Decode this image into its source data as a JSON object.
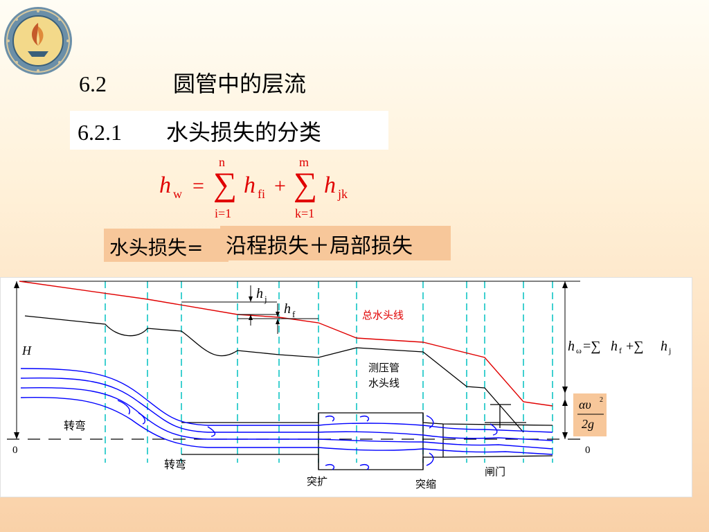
{
  "headings": {
    "section_number": "6.2",
    "section_title": "圆管中的层流",
    "subsection_number": "6.2.1",
    "subsection_title": "水头损失的分类"
  },
  "formula": {
    "lhs_var": "h",
    "lhs_sub": "w",
    "equals": "=",
    "sum1_upper": "n",
    "sum1_lower": "i=1",
    "term1_var": "h",
    "term1_sub": "fi",
    "plus": "+",
    "sum2_upper": "m",
    "sum2_lower": "k=1",
    "term2_var": "h",
    "term2_sub": "jk",
    "color": "#e00000"
  },
  "word_equation": {
    "left": "水头损失=",
    "right": "沿程损失＋局部损失"
  },
  "diagram": {
    "hj_var": "h",
    "hj_sub": "j",
    "hf_var": "h",
    "hf_sub": "f",
    "total_head_line": "总水头线",
    "piezometric_line_1": "测压管",
    "piezometric_line_2": "水头线",
    "H_label": "H",
    "zero_left": "0",
    "zero_right": "0",
    "bend_1": "转弯",
    "bend_2": "转弯",
    "sudden_expansion": "突扩",
    "sudden_contraction": "突缩",
    "gate": "闸门",
    "hw_formula_lhs": "h",
    "hw_formula_sub": "ω",
    "hw_formula_rest": "=∑",
    "hw_formula_hf": "h",
    "hw_formula_hf_sub": "f",
    "hw_formula_plus": "+∑",
    "hw_formula_hj": "h",
    "hw_formula_hj_sub": "j",
    "velocity_head_num": "αυ",
    "velocity_head_sup": "2",
    "velocity_head_den": "2g",
    "total_line_color": "#e00000",
    "streamline_color": "#0000ff",
    "guide_color": "#00c0c0"
  }
}
